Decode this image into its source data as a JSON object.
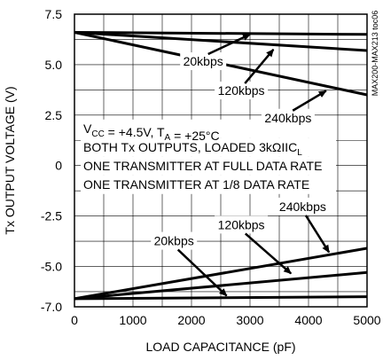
{
  "chart_data": {
    "type": "line",
    "ylabel": "Tx OUTPUT VOLTAGE (V)",
    "xlabel": "LOAD CAPACITANCE (pF)",
    "xlim": [
      0,
      5000
    ],
    "ylim": [
      -7.0,
      7.5
    ],
    "x_ticks": [
      0,
      1000,
      2000,
      3000,
      4000,
      5000
    ],
    "x_tick_labels": [
      "0",
      "1000",
      "2000",
      "3000",
      "4000",
      "5000"
    ],
    "y_ticks": [
      7.5,
      5.0,
      2.5,
      0,
      -2.5,
      -5.0,
      -7.0
    ],
    "y_tick_labels": [
      "7.5",
      "5.0",
      "2.5",
      "0",
      "-2.5",
      "-5.0",
      "-7.0"
    ],
    "grid": true,
    "side_code": "MAX200-MAX213 toc06",
    "series": [
      {
        "name": "20kbps",
        "x": [
          0,
          5000
        ],
        "y": [
          6.6,
          6.5
        ]
      },
      {
        "name": "120kbps",
        "x": [
          0,
          5000
        ],
        "y": [
          6.6,
          5.7
        ]
      },
      {
        "name": "240kbps",
        "x": [
          0,
          5000
        ],
        "y": [
          6.6,
          3.5
        ]
      },
      {
        "name": "240kbps",
        "x": [
          0,
          5000
        ],
        "y": [
          -6.6,
          -4.1
        ]
      },
      {
        "name": "120kbps",
        "x": [
          0,
          5000
        ],
        "y": [
          -6.6,
          -5.3
        ]
      },
      {
        "name": "20kbps",
        "x": [
          0,
          5000
        ],
        "y": [
          -6.6,
          -6.5
        ]
      }
    ],
    "annotations": {
      "conditions": [
        {
          "main": "V",
          "sub": "CC",
          "rest": " = +4.5V, T",
          "sub2": "A",
          "rest2": " = +25°C"
        },
        {
          "main": "BOTH Tx OUTPUTS, LOADED 3kΩIIC",
          "sub": "L",
          "rest": "",
          "sub2": "",
          "rest2": ""
        },
        {
          "main": "ONE TRANSMITTER AT FULL DATA RATE",
          "sub": "",
          "rest": "",
          "sub2": "",
          "rest2": ""
        },
        {
          "main": "ONE TRANSMITTER AT 1/8 DATA RATE",
          "sub": "",
          "rest": "",
          "sub2": "",
          "rest2": ""
        }
      ],
      "labels": [
        {
          "text": "20kbps",
          "at": [
            2200,
            4.95
          ],
          "arrow_to": [
            3000,
            6.5
          ]
        },
        {
          "text": "120kbps",
          "at": [
            2850,
            3.5
          ],
          "arrow_to": [
            3400,
            5.75
          ]
        },
        {
          "text": "240kbps",
          "at": [
            3650,
            2.15
          ],
          "arrow_to": [
            4300,
            3.7
          ]
        },
        {
          "text": "240kbps",
          "at": [
            3900,
            -2.25
          ],
          "arrow_to": [
            4350,
            -4.3
          ]
        },
        {
          "text": "120kbps",
          "at": [
            2850,
            -3.15
          ],
          "arrow_to": [
            3700,
            -5.35
          ]
        },
        {
          "text": "20kbps",
          "at": [
            1700,
            -3.95
          ],
          "arrow_to": [
            2600,
            -6.45
          ]
        }
      ]
    }
  }
}
